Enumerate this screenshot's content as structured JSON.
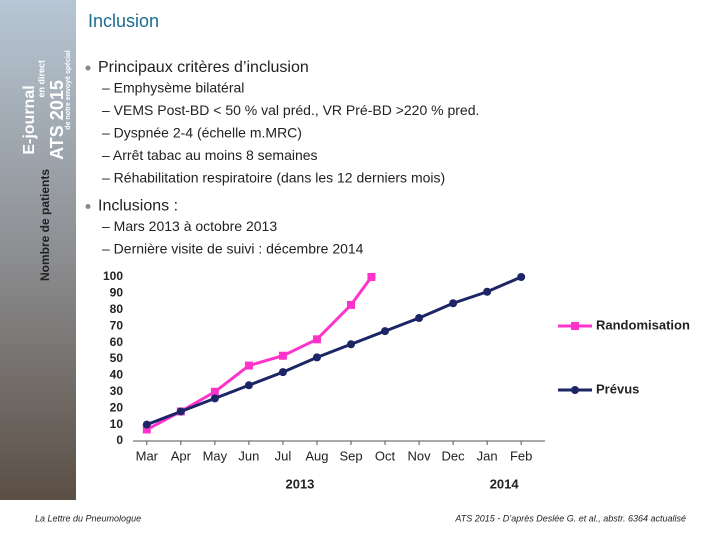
{
  "slide": {
    "title": "Inclusion",
    "sidebar": [
      "E-journal",
      "en direct",
      "ATS 2015",
      "de notre envoyé spécial"
    ],
    "bullets": [
      {
        "text": "Principaux critères d’inclusion",
        "items": [
          "– Emphysème bilatéral",
          "– VEMS Post-BD < 50 % val préd., VR Pré-BD  >220 % pred.",
          "– Dyspnée 2-4 (échelle m.MRC)",
          "– Arrêt tabac au moins 8 semaines",
          "– Réhabilitation respiratoire (dans les 12 derniers mois)"
        ]
      },
      {
        "text": "Inclusions :",
        "items": [
          "– Mars 2013 à octobre 2013",
          "– Dernière visite de suivi : décembre 2014"
        ]
      }
    ],
    "footer_left": "La Lettre du Pneumologue",
    "footer_right": "ATS 2015 - D’après Deslée G. et al., abstr. 6364 actualisé"
  },
  "chart_data": {
    "type": "line",
    "y_label": "Nombre de patients",
    "xlim": [
      -0.2,
      11.7
    ],
    "xticks": [
      {
        "value": 0,
        "label": "Mar"
      },
      {
        "value": 1,
        "label": "Apr"
      },
      {
        "value": 2,
        "label": "May"
      },
      {
        "value": 3,
        "label": "Jun"
      },
      {
        "value": 4,
        "label": "Jul"
      },
      {
        "value": 5,
        "label": "Aug"
      },
      {
        "value": 6,
        "label": "Sep"
      },
      {
        "value": 7,
        "label": "Oct"
      },
      {
        "value": 8,
        "label": "Nov"
      },
      {
        "value": 9,
        "label": "Dec"
      },
      {
        "value": 10,
        "label": "Jan"
      },
      {
        "value": 11,
        "label": "Feb"
      }
    ],
    "year_labels": [
      {
        "value": 4.5,
        "label": "2013"
      },
      {
        "value": 10.5,
        "label": "2014"
      }
    ],
    "ylim": [
      0,
      100
    ],
    "yticks": [
      0,
      10,
      20,
      30,
      40,
      50,
      60,
      70,
      80,
      90,
      100
    ],
    "legend": "right",
    "series": [
      {
        "name": "Randomisation",
        "color": "#ff33cc",
        "marker": "square",
        "x": [
          0,
          1,
          2,
          3,
          4,
          5,
          6,
          6.6
        ],
        "values": [
          7,
          18,
          30,
          46,
          52,
          62,
          83,
          100
        ]
      },
      {
        "name": "Prévus",
        "color": "#1c2566",
        "marker": "circle",
        "x": [
          0,
          1,
          2,
          3,
          4,
          5,
          6,
          7,
          8,
          9,
          10,
          11
        ],
        "values": [
          10,
          18,
          26,
          34,
          42,
          51,
          59,
          67,
          75,
          84,
          91,
          100
        ]
      }
    ]
  }
}
